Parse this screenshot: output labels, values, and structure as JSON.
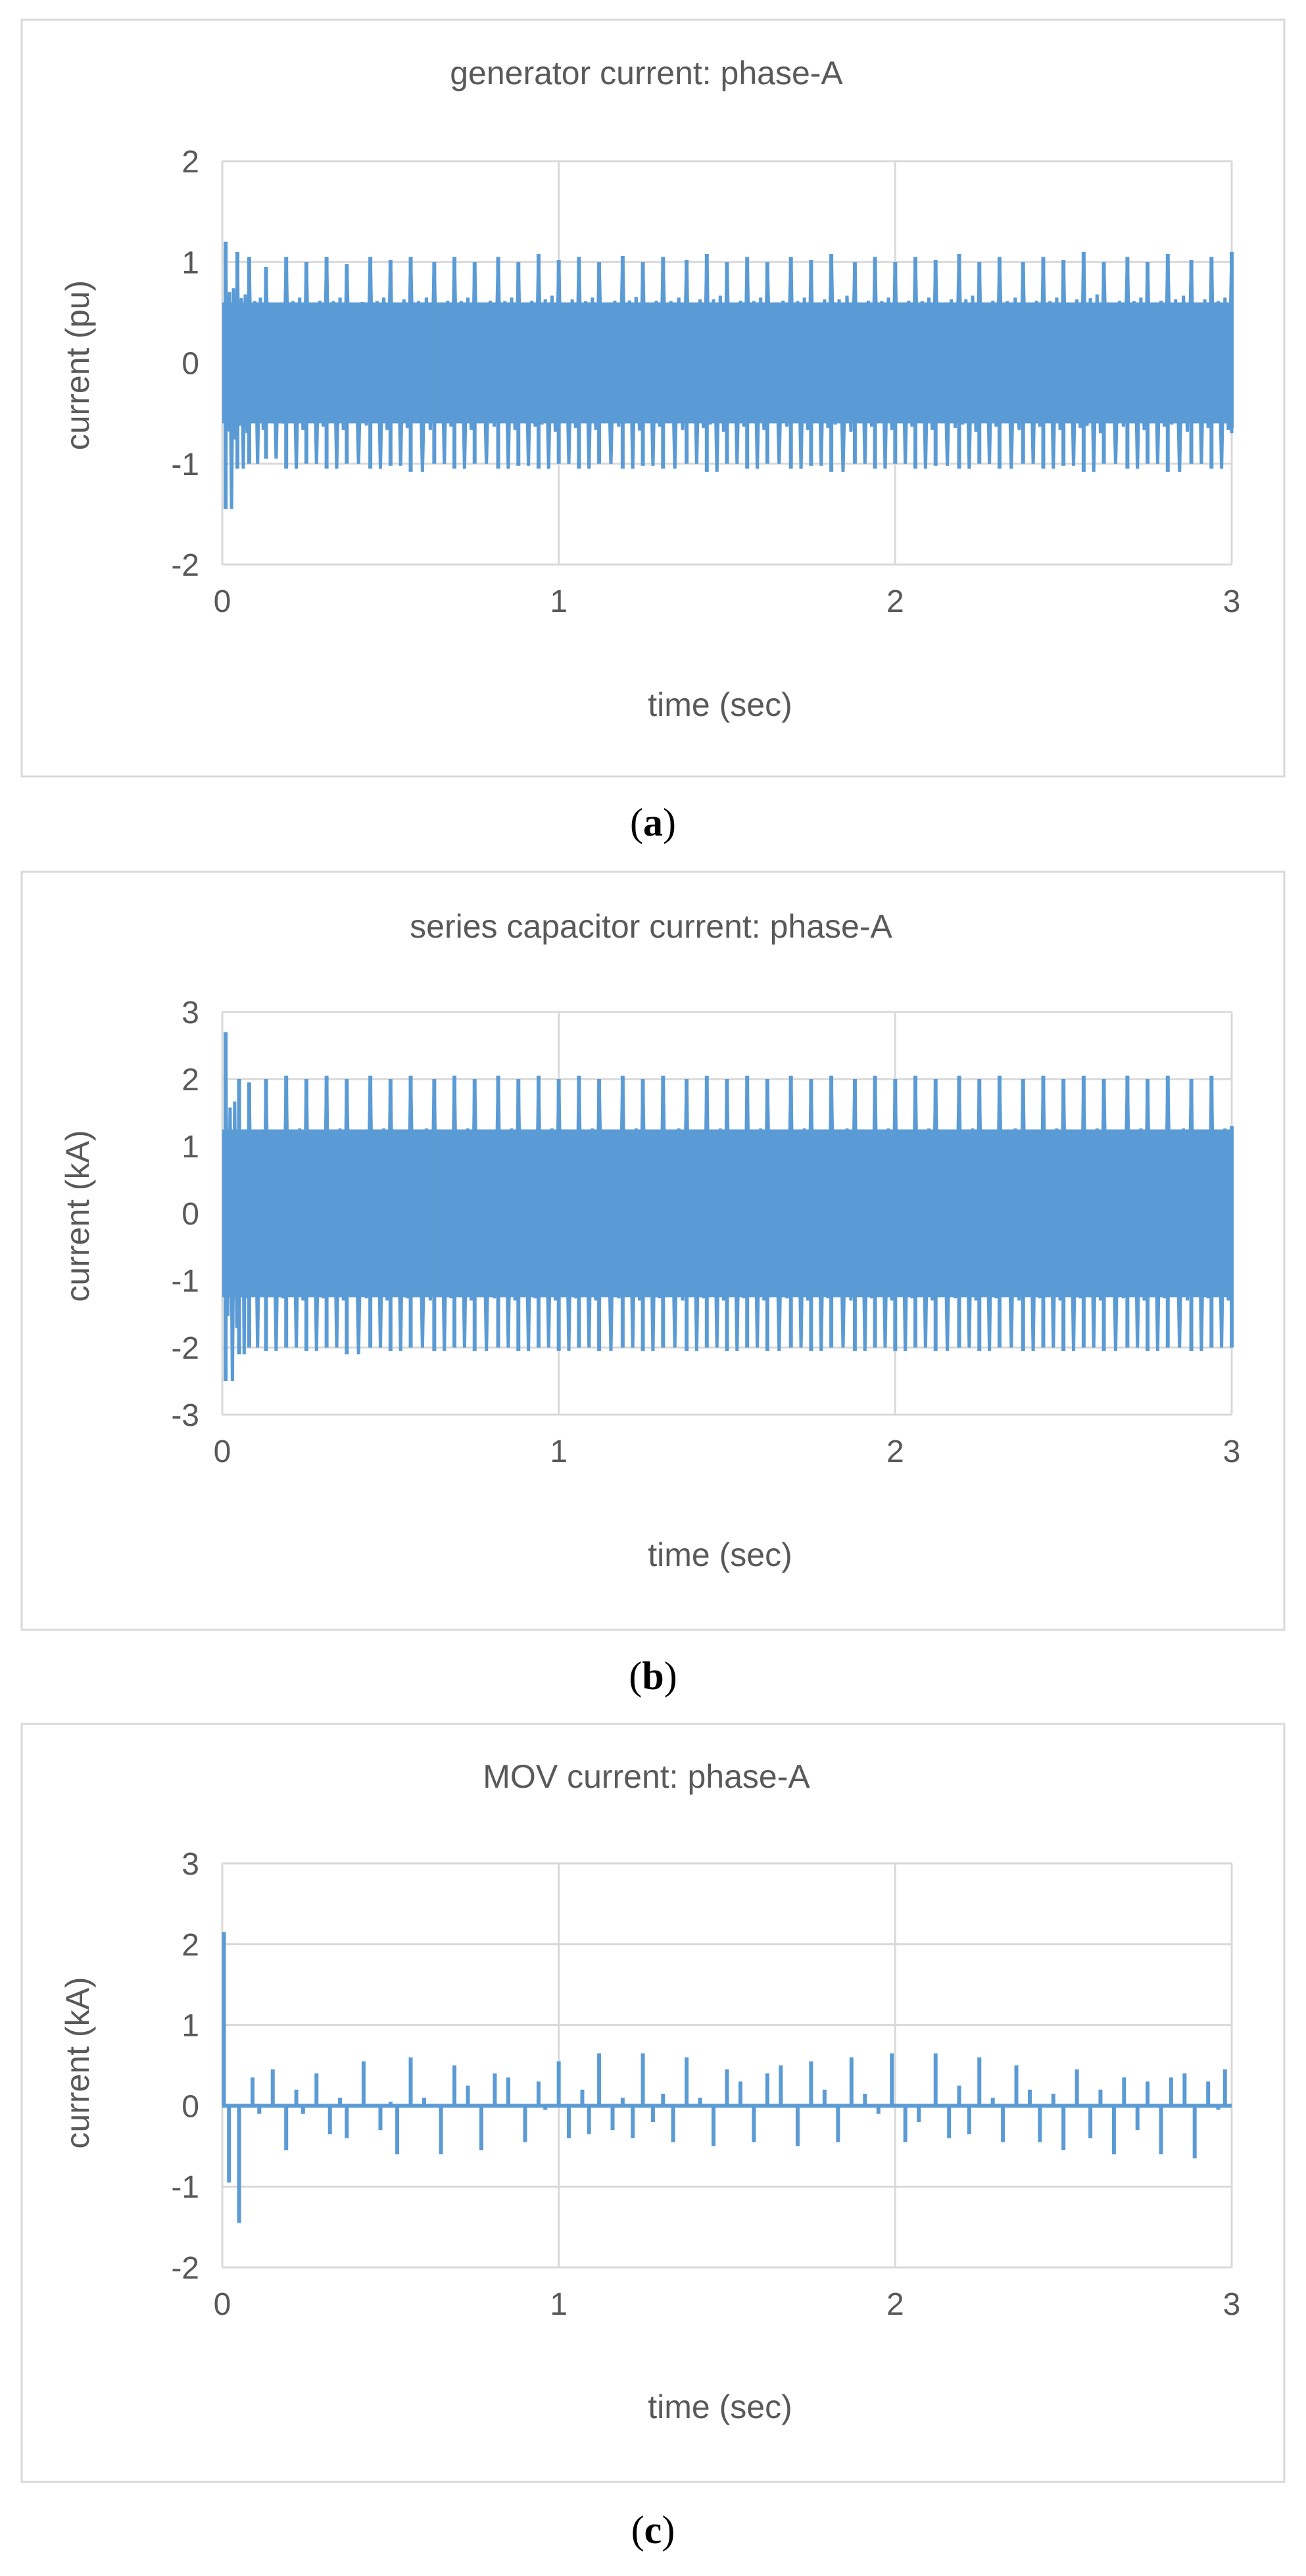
{
  "colors": {
    "series": "#5b9bd5",
    "grid": "#d9d9d9",
    "frame": "#d9d9d9",
    "text": "#595959",
    "caption": "#000000"
  },
  "chart_data": [
    {
      "type": "line",
      "title": "generator current: phase-A",
      "xlabel": "time (sec)",
      "ylabel": "current (pu)",
      "xlim": [
        0,
        3
      ],
      "ylim": [
        -2,
        2
      ],
      "x_ticks": [
        0,
        1,
        2,
        3
      ],
      "y_ticks": [
        -2,
        -1,
        0,
        1,
        2
      ],
      "grid": true,
      "legend": "none",
      "caption": {
        "open": "(",
        "letter": "a",
        "close": ")"
      },
      "series": [
        {
          "color": "#5b9bd5",
          "description_of_shape": "dense oscillation, positive peaks and negative troughs per beat",
          "peaks_x": [
            0.01,
            0.045,
            0.08,
            0.13,
            0.19,
            0.25,
            0.31,
            0.37,
            0.44,
            0.5,
            0.56,
            0.63,
            0.69,
            0.75,
            0.82,
            0.88,
            0.94,
            1.0,
            1.06,
            1.12,
            1.19,
            1.25,
            1.31,
            1.38,
            1.44,
            1.5,
            1.56,
            1.62,
            1.69,
            1.75,
            1.81,
            1.88,
            1.94,
            2.0,
            2.06,
            2.12,
            2.19,
            2.25,
            2.31,
            2.38,
            2.44,
            2.5,
            2.56,
            2.62,
            2.69,
            2.75,
            2.81,
            2.88,
            2.94,
            3.0
          ],
          "peaks_y": [
            1.2,
            1.1,
            1.05,
            0.95,
            1.05,
            1.0,
            1.05,
            0.98,
            1.05,
            1.02,
            1.05,
            1.0,
            1.05,
            1.0,
            1.05,
            1.0,
            1.08,
            1.02,
            1.05,
            1.0,
            1.06,
            1.0,
            1.05,
            1.02,
            1.08,
            1.0,
            1.05,
            1.0,
            1.05,
            1.02,
            1.08,
            1.0,
            1.05,
            1.0,
            1.05,
            1.02,
            1.08,
            1.0,
            1.05,
            1.0,
            1.05,
            1.02,
            1.1,
            1.0,
            1.05,
            1.0,
            1.08,
            1.02,
            1.05,
            1.1
          ],
          "troughs_y": [
            -1.45,
            -1.05,
            -1.0,
            -0.95,
            -1.05,
            -1.0,
            -1.05,
            -1.0,
            -1.05,
            -1.02,
            -1.08,
            -1.0,
            -1.05,
            -1.0,
            -1.05,
            -1.02,
            -1.05,
            -1.0,
            -1.05,
            -1.0,
            -1.05,
            -1.02,
            -1.05,
            -1.0,
            -1.08,
            -1.0,
            -1.05,
            -1.0,
            -1.05,
            -1.02,
            -1.08,
            -1.0,
            -1.05,
            -1.0,
            -1.05,
            -1.02,
            -1.05,
            -1.0,
            -1.05,
            -1.0,
            -1.05,
            -1.02,
            -1.08,
            -1.0,
            -1.05,
            -1.0,
            -1.08,
            -1.0,
            -1.05,
            -0.65
          ]
        }
      ]
    },
    {
      "type": "line",
      "title": "series capacitor current: phase-A",
      "xlabel": "time (sec)",
      "ylabel": "current (kA)",
      "xlim": [
        0,
        3
      ],
      "ylim": [
        -3,
        3
      ],
      "x_ticks": [
        0,
        1,
        2,
        3
      ],
      "y_ticks": [
        -3,
        -2,
        -1,
        0,
        1,
        2,
        3
      ],
      "grid": true,
      "legend": "none",
      "caption": {
        "open": "(",
        "letter": "b",
        "close": ")"
      },
      "series": [
        {
          "color": "#5b9bd5",
          "description_of_shape": "dense oscillation filling roughly -2 to 2 kA",
          "peaks_x": [
            0.01,
            0.05,
            0.08,
            0.13,
            0.19,
            0.25,
            0.31,
            0.37,
            0.44,
            0.5,
            0.56,
            0.63,
            0.69,
            0.75,
            0.82,
            0.88,
            0.94,
            1.0,
            1.06,
            1.12,
            1.19,
            1.25,
            1.31,
            1.38,
            1.44,
            1.5,
            1.56,
            1.62,
            1.69,
            1.75,
            1.81,
            1.88,
            1.94,
            2.0,
            2.06,
            2.12,
            2.19,
            2.25,
            2.31,
            2.38,
            2.44,
            2.5,
            2.56,
            2.62,
            2.69,
            2.75,
            2.81,
            2.88,
            2.94,
            3.0
          ],
          "peaks_y": [
            2.7,
            2.0,
            1.95,
            2.0,
            2.05,
            2.0,
            2.05,
            2.0,
            2.05,
            2.0,
            2.05,
            2.0,
            2.05,
            2.0,
            2.05,
            2.0,
            2.05,
            2.0,
            2.05,
            2.0,
            2.05,
            2.0,
            2.05,
            2.0,
            2.05,
            2.0,
            2.05,
            2.0,
            2.05,
            2.0,
            2.05,
            2.0,
            2.05,
            2.0,
            2.05,
            2.0,
            2.05,
            2.0,
            2.05,
            2.0,
            2.05,
            2.0,
            2.05,
            2.0,
            2.05,
            2.0,
            2.05,
            2.0,
            2.05,
            1.3
          ],
          "troughs_y": [
            -2.5,
            -2.1,
            -2.0,
            -2.05,
            -2.0,
            -2.05,
            -2.0,
            -2.1,
            -2.0,
            -2.05,
            -2.0,
            -2.05,
            -2.0,
            -2.05,
            -2.0,
            -2.05,
            -2.0,
            -2.05,
            -2.0,
            -2.05,
            -2.0,
            -2.05,
            -2.0,
            -2.05,
            -2.0,
            -2.05,
            -2.0,
            -2.05,
            -2.0,
            -2.05,
            -2.0,
            -2.05,
            -2.0,
            -2.05,
            -2.0,
            -2.05,
            -2.0,
            -2.05,
            -2.0,
            -2.05,
            -2.0,
            -2.05,
            -2.0,
            -2.05,
            -2.0,
            -2.05,
            -2.0,
            -2.05,
            -2.0,
            -2.0
          ]
        }
      ]
    },
    {
      "type": "line",
      "title": "MOV current: phase-A",
      "xlabel": "time (sec)",
      "ylabel": "current (kA)",
      "xlim": [
        0,
        3
      ],
      "ylim": [
        -2,
        3
      ],
      "x_ticks": [
        0,
        1,
        2,
        3
      ],
      "y_ticks": [
        -2,
        -1,
        0,
        1,
        2,
        3
      ],
      "grid": true,
      "legend": "none",
      "caption": {
        "open": "(",
        "letter": "c",
        "close": ")"
      },
      "series": [
        {
          "color": "#5b9bd5",
          "description_of_shape": "baseline at 0 with sparse spikes",
          "spikes": [
            {
              "x": 0.005,
              "y": 2.15
            },
            {
              "x": 0.02,
              "y": -0.95
            },
            {
              "x": 0.05,
              "y": -1.45
            },
            {
              "x": 0.09,
              "y": 0.35
            },
            {
              "x": 0.11,
              "y": -0.1
            },
            {
              "x": 0.15,
              "y": 0.45
            },
            {
              "x": 0.19,
              "y": -0.55
            },
            {
              "x": 0.22,
              "y": 0.2
            },
            {
              "x": 0.24,
              "y": -0.1
            },
            {
              "x": 0.28,
              "y": 0.4
            },
            {
              "x": 0.32,
              "y": -0.35
            },
            {
              "x": 0.35,
              "y": 0.1
            },
            {
              "x": 0.37,
              "y": -0.4
            },
            {
              "x": 0.42,
              "y": 0.55
            },
            {
              "x": 0.47,
              "y": -0.3
            },
            {
              "x": 0.5,
              "y": 0.05
            },
            {
              "x": 0.52,
              "y": -0.6
            },
            {
              "x": 0.56,
              "y": 0.6
            },
            {
              "x": 0.6,
              "y": 0.1
            },
            {
              "x": 0.65,
              "y": -0.6
            },
            {
              "x": 0.69,
              "y": 0.5
            },
            {
              "x": 0.73,
              "y": 0.25
            },
            {
              "x": 0.77,
              "y": -0.55
            },
            {
              "x": 0.81,
              "y": 0.4
            },
            {
              "x": 0.85,
              "y": 0.35
            },
            {
              "x": 0.9,
              "y": -0.45
            },
            {
              "x": 0.94,
              "y": 0.3
            },
            {
              "x": 0.96,
              "y": -0.05
            },
            {
              "x": 1.0,
              "y": 0.55
            },
            {
              "x": 1.03,
              "y": -0.4
            },
            {
              "x": 1.07,
              "y": 0.2
            },
            {
              "x": 1.09,
              "y": -0.35
            },
            {
              "x": 1.12,
              "y": 0.65
            },
            {
              "x": 1.16,
              "y": -0.3
            },
            {
              "x": 1.19,
              "y": 0.1
            },
            {
              "x": 1.22,
              "y": -0.4
            },
            {
              "x": 1.25,
              "y": 0.65
            },
            {
              "x": 1.28,
              "y": -0.2
            },
            {
              "x": 1.31,
              "y": 0.15
            },
            {
              "x": 1.34,
              "y": -0.45
            },
            {
              "x": 1.38,
              "y": 0.6
            },
            {
              "x": 1.42,
              "y": 0.1
            },
            {
              "x": 1.46,
              "y": -0.5
            },
            {
              "x": 1.5,
              "y": 0.45
            },
            {
              "x": 1.54,
              "y": 0.3
            },
            {
              "x": 1.58,
              "y": -0.45
            },
            {
              "x": 1.62,
              "y": 0.4
            },
            {
              "x": 1.66,
              "y": 0.5
            },
            {
              "x": 1.71,
              "y": -0.5
            },
            {
              "x": 1.75,
              "y": 0.55
            },
            {
              "x": 1.79,
              "y": 0.2
            },
            {
              "x": 1.83,
              "y": -0.45
            },
            {
              "x": 1.87,
              "y": 0.6
            },
            {
              "x": 1.91,
              "y": 0.15
            },
            {
              "x": 1.95,
              "y": -0.1
            },
            {
              "x": 1.99,
              "y": 0.65
            },
            {
              "x": 2.03,
              "y": -0.45
            },
            {
              "x": 2.07,
              "y": -0.2
            },
            {
              "x": 2.12,
              "y": 0.65
            },
            {
              "x": 2.16,
              "y": -0.4
            },
            {
              "x": 2.19,
              "y": 0.25
            },
            {
              "x": 2.22,
              "y": -0.35
            },
            {
              "x": 2.25,
              "y": 0.6
            },
            {
              "x": 2.29,
              "y": 0.1
            },
            {
              "x": 2.32,
              "y": -0.45
            },
            {
              "x": 2.36,
              "y": 0.5
            },
            {
              "x": 2.4,
              "y": 0.2
            },
            {
              "x": 2.43,
              "y": -0.45
            },
            {
              "x": 2.47,
              "y": 0.15
            },
            {
              "x": 2.5,
              "y": -0.55
            },
            {
              "x": 2.54,
              "y": 0.45
            },
            {
              "x": 2.58,
              "y": -0.4
            },
            {
              "x": 2.61,
              "y": 0.2
            },
            {
              "x": 2.65,
              "y": -0.6
            },
            {
              "x": 2.68,
              "y": 0.35
            },
            {
              "x": 2.72,
              "y": -0.3
            },
            {
              "x": 2.75,
              "y": 0.3
            },
            {
              "x": 2.79,
              "y": -0.6
            },
            {
              "x": 2.82,
              "y": 0.35
            },
            {
              "x": 2.86,
              "y": 0.4
            },
            {
              "x": 2.89,
              "y": -0.65
            },
            {
              "x": 2.93,
              "y": 0.3
            },
            {
              "x": 2.96,
              "y": -0.05
            },
            {
              "x": 2.98,
              "y": 0.45
            }
          ]
        }
      ]
    }
  ]
}
